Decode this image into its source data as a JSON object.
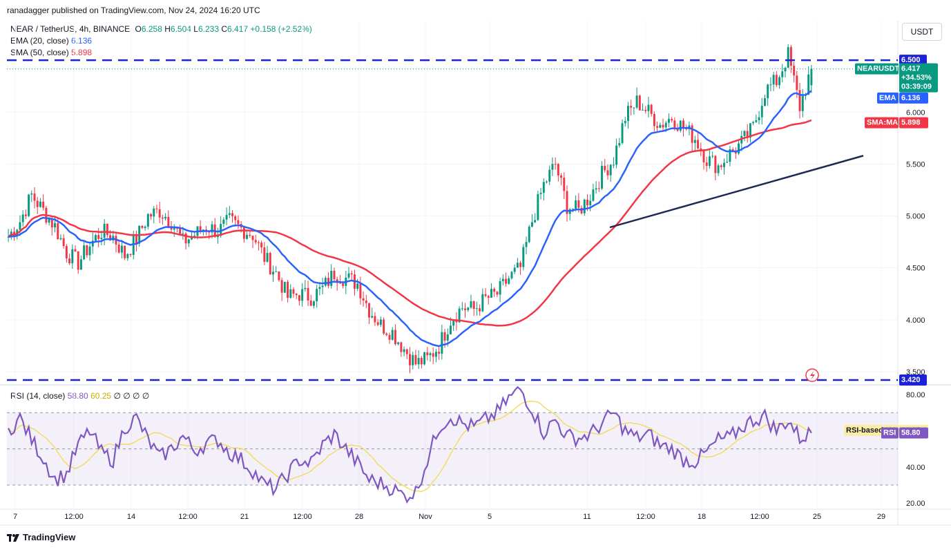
{
  "published_line": "ranadagger published on TradingView.com, Nov 24, 2024 16:20 UTC",
  "header": {
    "symbol": "NEAR / TetherUS, 4h, BINANCE",
    "o_label": "O",
    "o": "6.258",
    "h_label": "H",
    "h": "6.504",
    "l_label": "L",
    "l": "6.233",
    "c_label": "C",
    "c": "6.417",
    "change": "+0.158 (+2.52%)",
    "ema_label": "EMA (20, close)",
    "ema_value": "6.136",
    "sma_label": "SMA (50, close)",
    "sma_value": "5.898",
    "rsi_label": "RSI (14, close)",
    "rsi_value": "58.80",
    "rsi_ma_value": "60.25",
    "rsi_extra": "∅ ∅ ∅ ∅"
  },
  "currency_button": "USDT",
  "brand": "TradingView",
  "colors": {
    "up": "#089981",
    "down": "#f23645",
    "ema": "#2962ff",
    "sma": "#f23645",
    "rsi": "#7e57c2",
    "rsi_ma": "#f2d94e",
    "level": "#1c23d6",
    "trend": "#1e2a52"
  },
  "chart_data": {
    "type": "candlestick",
    "price_axis": {
      "ticks": [
        "6.000",
        "5.500",
        "5.000",
        "4.500",
        "4.000",
        "3.500"
      ],
      "range": [
        3.38,
        6.88
      ]
    },
    "rsi_axis": {
      "ticks": [
        "80.00",
        "40.00",
        "20.00"
      ],
      "range": [
        17,
        85
      ],
      "bands": [
        70,
        30
      ],
      "mid": 50
    },
    "x_ticks": [
      "7",
      "12:00",
      "14",
      "12:00",
      "21",
      "12:00",
      "28",
      "Nov",
      "5",
      "11",
      "12:00",
      "18",
      "12:00",
      "25",
      "29"
    ],
    "levels": [
      {
        "label": "6.500",
        "value": 6.5
      },
      {
        "label": "3.420",
        "value": 3.42
      }
    ],
    "trendline": {
      "from": 4.89,
      "to": 5.58
    },
    "last_price": {
      "symbol": "NEARUSDT",
      "value": "6.417",
      "change": "+34.53%",
      "countdown": "03:39:09",
      "y": 6.417
    },
    "ema_tag": {
      "label": "EMA",
      "value": "6.136",
      "y": 6.136
    },
    "sma_tag": {
      "label": "SMA:MA",
      "value": "5.898",
      "y": 5.898
    },
    "rsi_ma_tag": {
      "label": "RSI-based MA",
      "value": "60.25",
      "y": 60.25
    },
    "rsi_tag": {
      "label": "RSI",
      "value": "58.80",
      "y": 58.8
    },
    "close_path": [
      4.8,
      4.95,
      5.2,
      5.05,
      4.9,
      4.65,
      4.55,
      4.72,
      4.85,
      4.8,
      4.62,
      4.78,
      5.0,
      5.05,
      4.95,
      4.75,
      4.82,
      4.9,
      4.85,
      4.95,
      4.88,
      4.82,
      4.6,
      4.45,
      4.22,
      4.25,
      4.22,
      4.3,
      4.45,
      4.4,
      4.35,
      4.1,
      3.95,
      3.88,
      3.72,
      3.58,
      3.62,
      3.75,
      4.0,
      4.12,
      4.1,
      4.2,
      4.25,
      4.4,
      4.5,
      4.95,
      5.3,
      5.5,
      5.1,
      5.05,
      5.2,
      5.4,
      5.55,
      5.95,
      6.1,
      6.0,
      5.88,
      5.95,
      5.85,
      5.75,
      5.55,
      5.48,
      5.6,
      5.7,
      5.85,
      6.2,
      6.3,
      6.55,
      6.05,
      6.417
    ],
    "rsi_path": [
      60,
      67,
      55,
      45,
      33,
      36,
      52,
      60,
      48,
      44,
      62,
      67,
      55,
      45,
      50,
      57,
      49,
      53,
      55,
      48,
      44,
      38,
      30,
      28,
      36,
      44,
      42,
      52,
      58,
      50,
      42,
      33,
      31,
      28,
      24,
      26,
      44,
      62,
      68,
      64,
      62,
      66,
      70,
      78,
      83,
      72,
      59,
      66,
      57,
      56,
      58,
      64,
      70,
      60,
      56,
      58,
      52,
      50,
      44,
      43,
      48,
      55,
      56,
      62,
      66,
      68,
      60,
      66,
      56,
      58.8
    ]
  }
}
